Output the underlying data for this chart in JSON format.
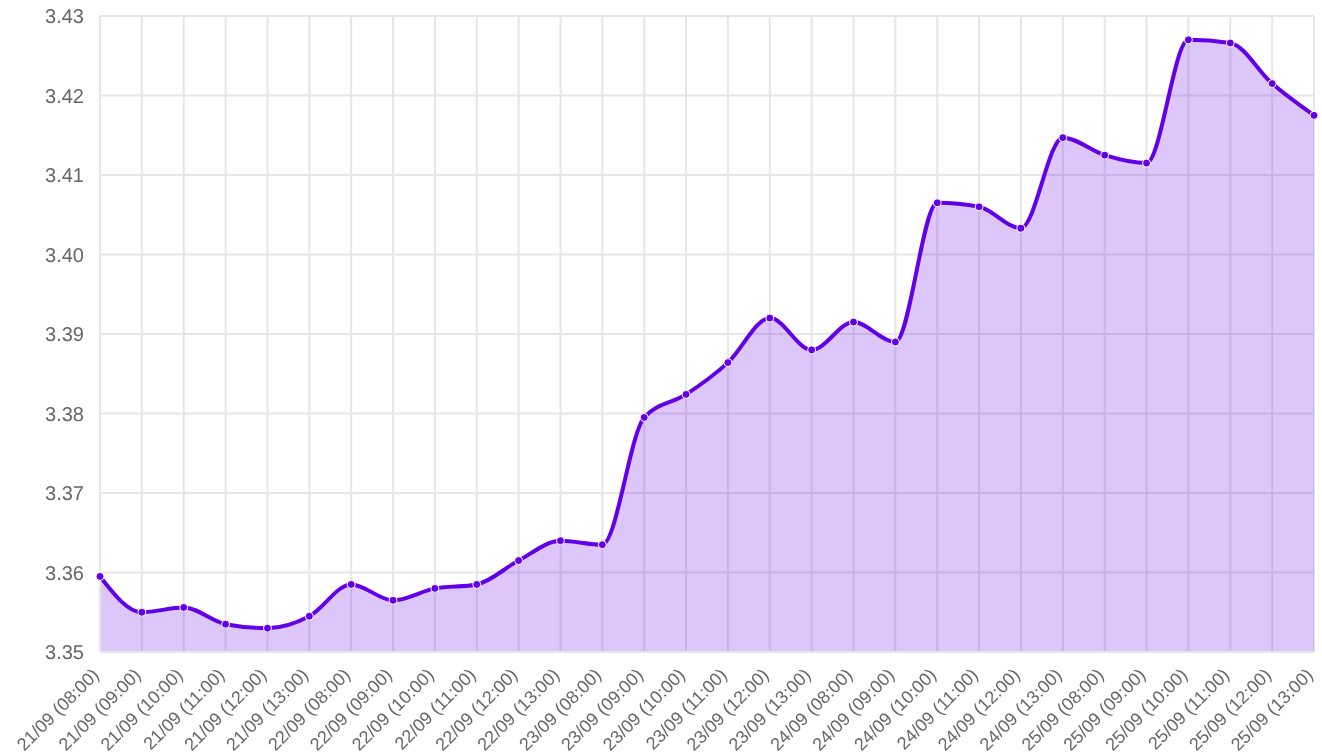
{
  "chart_data": {
    "type": "area",
    "categories": [
      "21/09 (08:00)",
      "21/09 (09:00)",
      "21/09 (10:00)",
      "21/09 (11:00)",
      "21/09 (12:00)",
      "21/09 (13:00)",
      "22/09 (08:00)",
      "22/09 (09:00)",
      "22/09 (10:00)",
      "22/09 (11:00)",
      "22/09 (12:00)",
      "22/09 (13:00)",
      "23/09 (08:00)",
      "23/09 (09:00)",
      "23/09 (10:00)",
      "23/09 (11:00)",
      "23/09 (12:00)",
      "23/09 (13:00)",
      "24/09 (08:00)",
      "24/09 (09:00)",
      "24/09 (10:00)",
      "24/09 (11:00)",
      "24/09 (12:00)",
      "24/09 (13:00)",
      "25/09 (08:00)",
      "25/09 (09:00)",
      "25/09 (10:00)",
      "25/09 (11:00)",
      "25/09 (12:00)",
      "25/09 (13:00)"
    ],
    "series": [
      {
        "color": "#6200ea",
        "values": [
          3.3595,
          3.355,
          3.3556,
          3.3535,
          3.353,
          3.3545,
          3.3585,
          3.3565,
          3.358,
          3.3585,
          3.3615,
          3.364,
          3.3635,
          3.3795,
          3.3824,
          3.3864,
          3.392,
          3.388,
          3.3915,
          3.389,
          3.4065,
          3.406,
          3.4033,
          3.4147,
          3.4125,
          3.4115,
          3.427,
          3.4266,
          3.4215,
          3.4175
        ]
      }
    ],
    "ylim": [
      3.35,
      3.43
    ],
    "yticks": [
      3.35,
      3.36,
      3.37,
      3.38,
      3.39,
      {
        "value": 3.4,
        "label": "3.40"
      },
      3.41,
      3.42,
      3.43
    ],
    "grid": true,
    "marker": "circle",
    "line_style": "solid"
  }
}
